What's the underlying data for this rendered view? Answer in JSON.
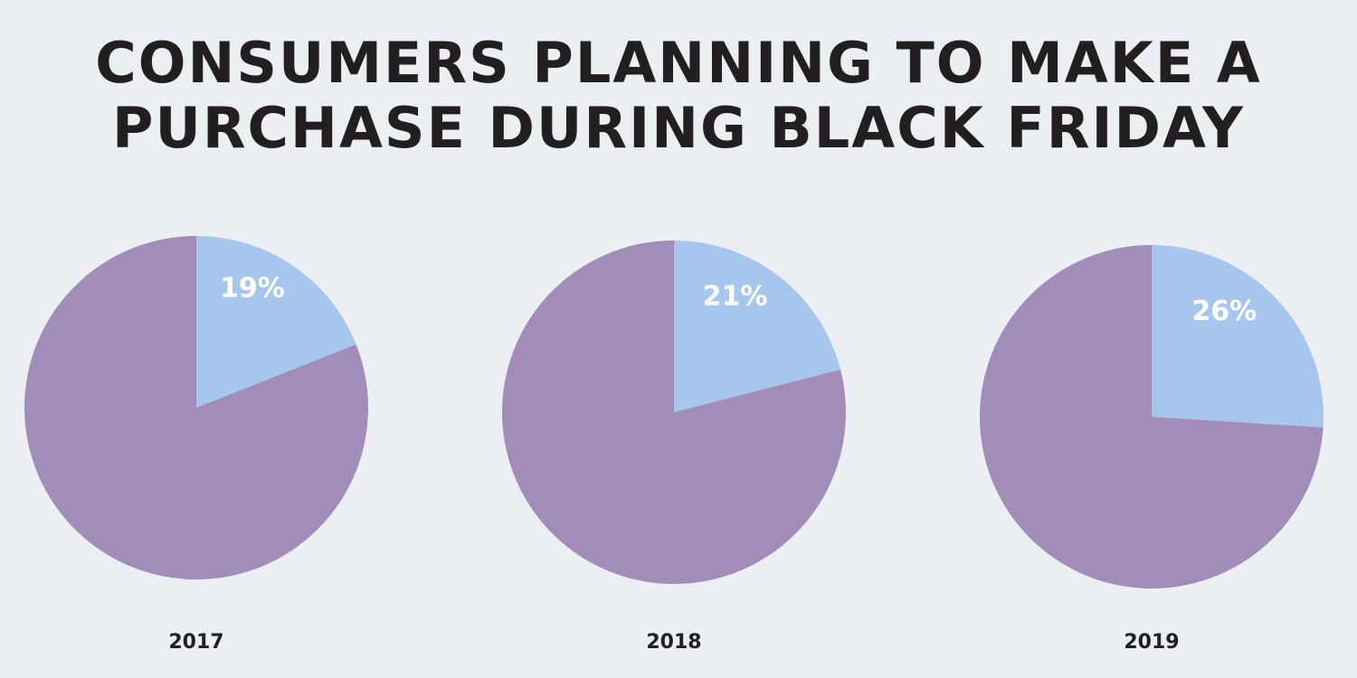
{
  "title": {
    "line1": "CONSUMERS  PLANNING TO MAKE A",
    "line2": "PURCHASE DURING BLACK FRIDAY"
  },
  "colors": {
    "background": "#ebeef2",
    "highlight_slice": "#a7c6ee",
    "remainder_slice": "#a18db8",
    "title_text": "#231f20"
  },
  "chart_data": [
    {
      "type": "pie",
      "title": "2017",
      "slices": [
        {
          "label": "19%",
          "value": 19,
          "color": "#a7c6ee"
        },
        {
          "label": "",
          "value": 81,
          "color": "#a18db8"
        }
      ]
    },
    {
      "type": "pie",
      "title": "2018",
      "slices": [
        {
          "label": "21%",
          "value": 21,
          "color": "#a7c6ee"
        },
        {
          "label": "",
          "value": 79,
          "color": "#a18db8"
        }
      ]
    },
    {
      "type": "pie",
      "title": "2019",
      "slices": [
        {
          "label": "26%",
          "value": 26,
          "color": "#a7c6ee"
        },
        {
          "label": "",
          "value": 74,
          "color": "#a18db8"
        }
      ]
    }
  ]
}
